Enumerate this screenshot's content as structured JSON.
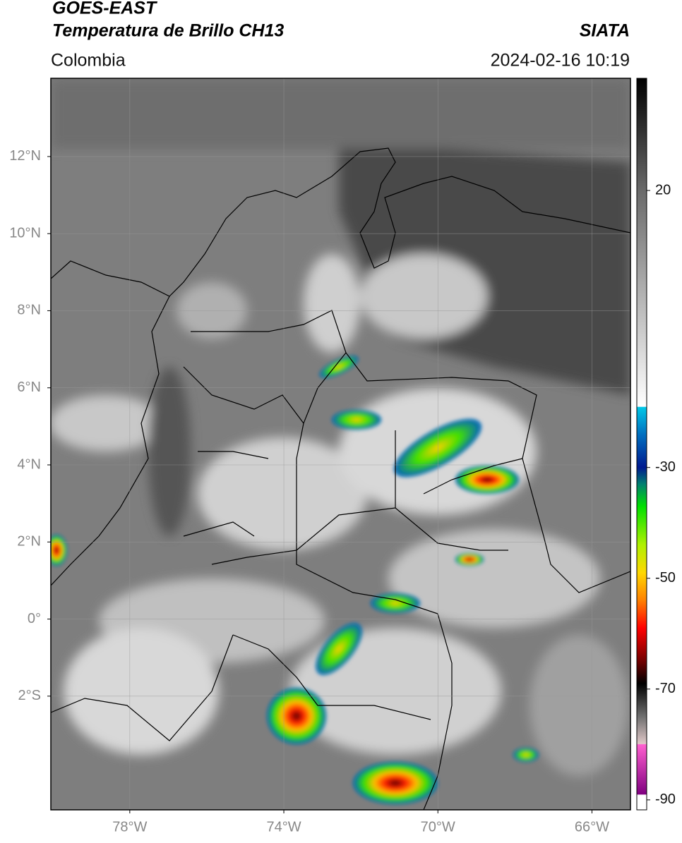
{
  "header": {
    "satellite": "GOES-EAST",
    "product": "Temperatura de Brillo CH13",
    "region": "Colombia",
    "source": "SIATA",
    "datetime": "2024-02-16 10:19"
  },
  "map": {
    "xlim": [
      -80.05,
      -65
    ],
    "ylim": [
      -4.95,
      14.03
    ],
    "xticks": [
      {
        "value": -78,
        "label": "78°W"
      },
      {
        "value": -74,
        "label": "74°W"
      },
      {
        "value": -70,
        "label": "70°W"
      },
      {
        "value": -66,
        "label": "66°W"
      }
    ],
    "yticks": [
      {
        "value": 12,
        "label": "12°N"
      },
      {
        "value": 10,
        "label": "10°N"
      },
      {
        "value": 8,
        "label": "8°N"
      },
      {
        "value": 6,
        "label": "6°N"
      },
      {
        "value": 4,
        "label": "4°N"
      },
      {
        "value": 2,
        "label": "2°N"
      },
      {
        "value": 0,
        "label": "0°"
      },
      {
        "value": -2,
        "label": "2°S"
      }
    ],
    "grid": true
  },
  "colorbar": {
    "lim": [
      -91.8,
      40.25
    ],
    "ticks": [
      20,
      -30,
      -50,
      -70,
      -90
    ],
    "colormap": [
      {
        "value": 40.25,
        "color": "#000000"
      },
      {
        "value": 20,
        "color": "#6a6a6a"
      },
      {
        "value": -19,
        "color": "#ffffff"
      },
      {
        "value": -19.1,
        "color": "#00c8e8"
      },
      {
        "value": -24,
        "color": "#0070c0"
      },
      {
        "value": -30,
        "color": "#001a90"
      },
      {
        "value": -33,
        "color": "#008070"
      },
      {
        "value": -37,
        "color": "#00e000"
      },
      {
        "value": -44,
        "color": "#b0f000"
      },
      {
        "value": -49,
        "color": "#ffd800"
      },
      {
        "value": -54,
        "color": "#ff8000"
      },
      {
        "value": -59,
        "color": "#ff0000"
      },
      {
        "value": -65,
        "color": "#700000"
      },
      {
        "value": -69,
        "color": "#000000"
      },
      {
        "value": -75,
        "color": "#707070"
      },
      {
        "value": -79.9,
        "color": "#e0c8c8"
      },
      {
        "value": -80,
        "color": "#ff60d0"
      },
      {
        "value": -89,
        "color": "#800080"
      },
      {
        "value": -89.1,
        "color": "#ffffff"
      },
      {
        "value": -91.8,
        "color": "#ffffff"
      }
    ]
  }
}
